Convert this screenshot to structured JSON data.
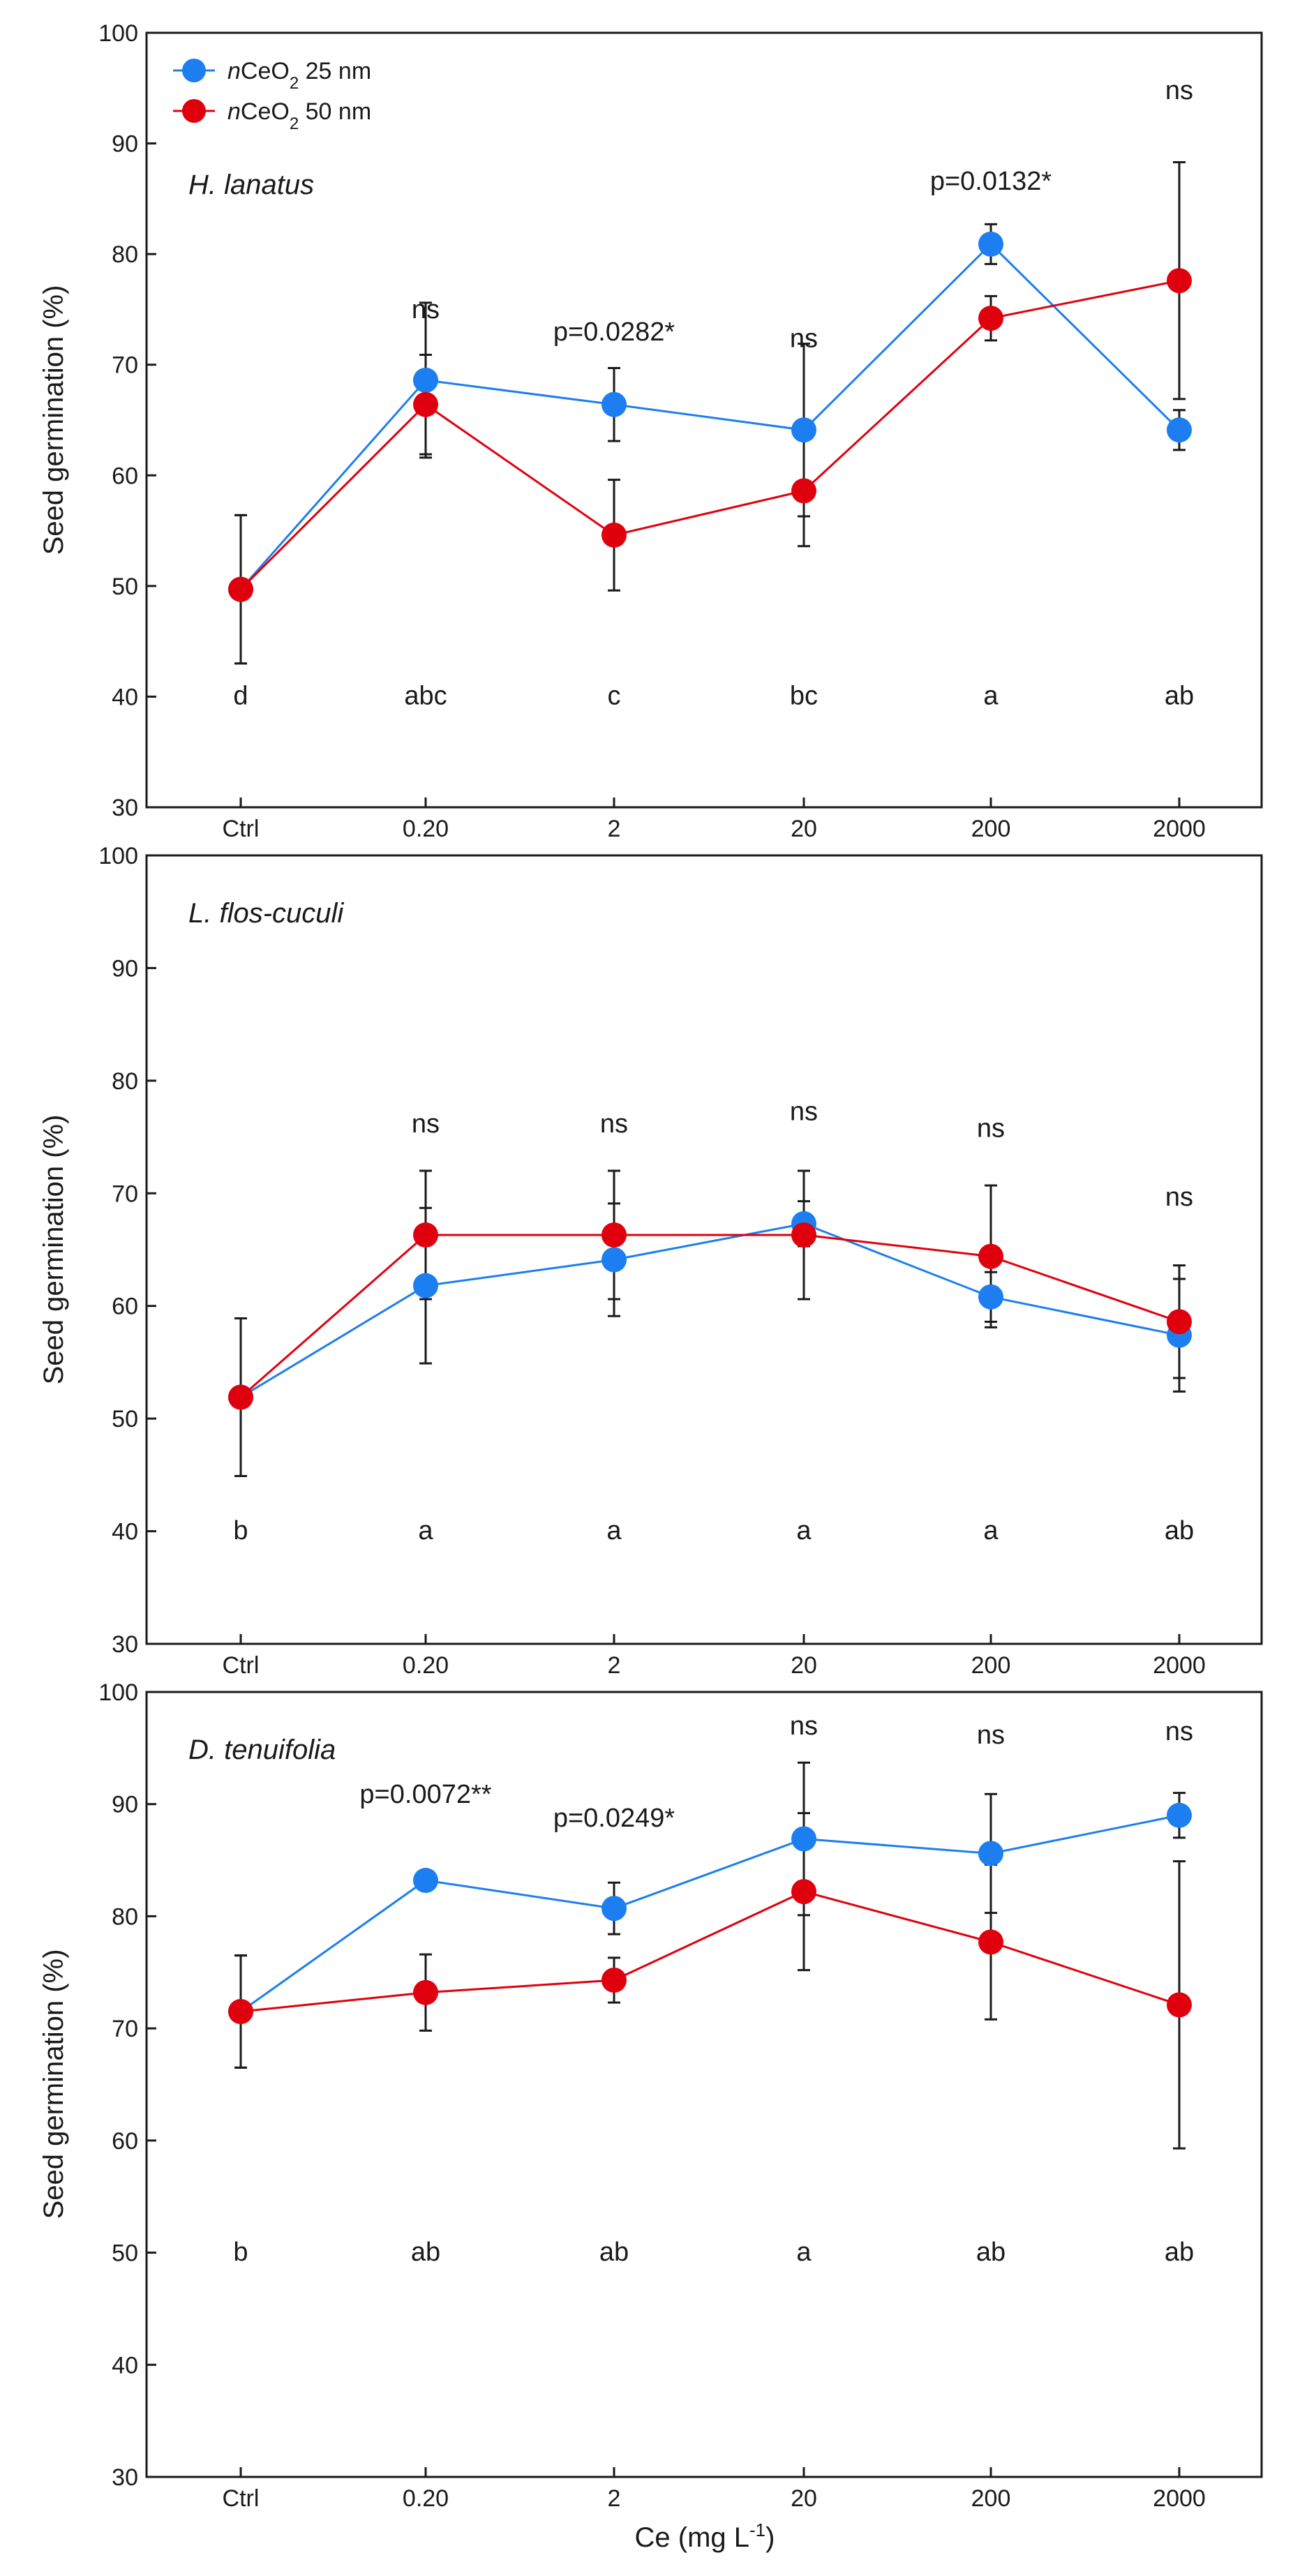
{
  "colors": {
    "series_25": "#1c7ef0",
    "series_50": "#e0000d",
    "axis": "#1a1a1a"
  },
  "xlabel_main": "Ce (mg L",
  "xlabel_sup": "-1",
  "xlabel_end": ")",
  "legend": [
    {
      "italic": "n",
      "base": "CeO",
      "sub": "2",
      "rest": " 25 nm"
    },
    {
      "italic": "n",
      "base": "CeO",
      "sub": "2",
      "rest": " 50 nm"
    }
  ],
  "chart_data": [
    {
      "type": "line",
      "title": "H. lanatus",
      "ylabel": "Seed germination (%)",
      "xlabel": "Ce (mg L-1)",
      "categories": [
        "Ctrl",
        "0.20",
        "2",
        "20",
        "200",
        "2000"
      ],
      "ylim": [
        30,
        100
      ],
      "yticks": [
        "30",
        "40",
        "50",
        "60",
        "70",
        "80",
        "90",
        "100"
      ],
      "series": [
        {
          "name": "nCeO2 25 nm",
          "values": [
            49.7,
            68.6,
            66.4,
            64.1,
            80.9,
            64.1
          ],
          "error": [
            6.7,
            7.0,
            3.3,
            7.8,
            1.8,
            1.8
          ]
        },
        {
          "name": "nCeO2 50 nm",
          "values": [
            49.7,
            66.4,
            54.6,
            58.6,
            74.2,
            77.6
          ],
          "error": [
            6.7,
            4.5,
            5.0,
            5.0,
            2.0,
            10.7
          ]
        }
      ],
      "annotations": [
        {
          "category": "0.20",
          "text": "ns",
          "y": 74.2
        },
        {
          "category": "2",
          "text": "p=0.0282*",
          "y": 72.2
        },
        {
          "category": "20",
          "text": "ns",
          "y": 71.6
        },
        {
          "category": "200",
          "text": "p=0.0132*",
          "y": 85.8
        },
        {
          "category": "2000",
          "text": "ns",
          "y": 94.0
        }
      ],
      "letters": [
        "d",
        "abc",
        "c",
        "bc",
        "a",
        "ab"
      ],
      "letters_y": 39.3
    },
    {
      "type": "line",
      "title": "L. flos-cuculi",
      "ylabel": "Seed germination (%)",
      "xlabel": "Ce (mg L-1)",
      "categories": [
        "Ctrl",
        "0.20",
        "2",
        "20",
        "200",
        "2000"
      ],
      "ylim": [
        30,
        100
      ],
      "yticks": [
        "30",
        "40",
        "50",
        "60",
        "70",
        "80",
        "90",
        "100"
      ],
      "series": [
        {
          "name": "nCeO2 25 nm",
          "values": [
            51.9,
            61.8,
            64.1,
            67.3,
            60.8,
            57.4
          ],
          "error": [
            7.0,
            6.9,
            5.0,
            2.0,
            2.2,
            5.0
          ]
        },
        {
          "name": "nCeO2 50 nm",
          "values": [
            51.9,
            66.3,
            66.3,
            66.3,
            64.4,
            58.6
          ],
          "error": [
            7.0,
            5.7,
            5.7,
            5.7,
            6.3,
            5.0
          ]
        }
      ],
      "annotations": [
        {
          "category": "0.20",
          "text": "ns",
          "y": 75.4
        },
        {
          "category": "2",
          "text": "ns",
          "y": 75.4
        },
        {
          "category": "20",
          "text": "ns",
          "y": 76.5
        },
        {
          "category": "200",
          "text": "ns",
          "y": 75.0
        },
        {
          "category": "2000",
          "text": "ns",
          "y": 68.9
        }
      ],
      "letters": [
        "b",
        "a",
        "a",
        "a",
        "a",
        "ab"
      ],
      "letters_y": 39.3
    },
    {
      "type": "line",
      "title": "D. tenuifolia",
      "ylabel": "Seed germination (%)",
      "xlabel": "Ce (mg L-1)",
      "categories": [
        "Ctrl",
        "0.20",
        "2",
        "20",
        "200",
        "2000"
      ],
      "ylim": [
        30,
        100
      ],
      "yticks": [
        "30",
        "40",
        "50",
        "60",
        "70",
        "80",
        "90",
        "100"
      ],
      "series": [
        {
          "name": "nCeO2 25 nm",
          "values": [
            71.5,
            83.2,
            80.7,
            86.9,
            85.6,
            89.0
          ],
          "error": [
            5.0,
            0.0,
            2.3,
            6.8,
            5.3,
            2.0
          ]
        },
        {
          "name": "nCeO2 50 nm",
          "values": [
            71.5,
            73.2,
            74.3,
            82.2,
            77.7,
            72.1
          ],
          "error": [
            5.0,
            3.4,
            2.0,
            7.0,
            6.9,
            12.8
          ]
        }
      ],
      "annotations": [
        {
          "category": "0.20",
          "text": "p=0.0072**",
          "y": 90.1
        },
        {
          "category": "2",
          "text": "p=0.0249*",
          "y": 88.0
        },
        {
          "category": "20",
          "text": "ns",
          "y": 96.2
        },
        {
          "category": "200",
          "text": "ns",
          "y": 95.4
        },
        {
          "category": "2000",
          "text": "ns",
          "y": 95.7
        }
      ],
      "letters": [
        "b",
        "ab",
        "ab",
        "a",
        "ab",
        "ab"
      ],
      "letters_y": 49.3
    }
  ]
}
